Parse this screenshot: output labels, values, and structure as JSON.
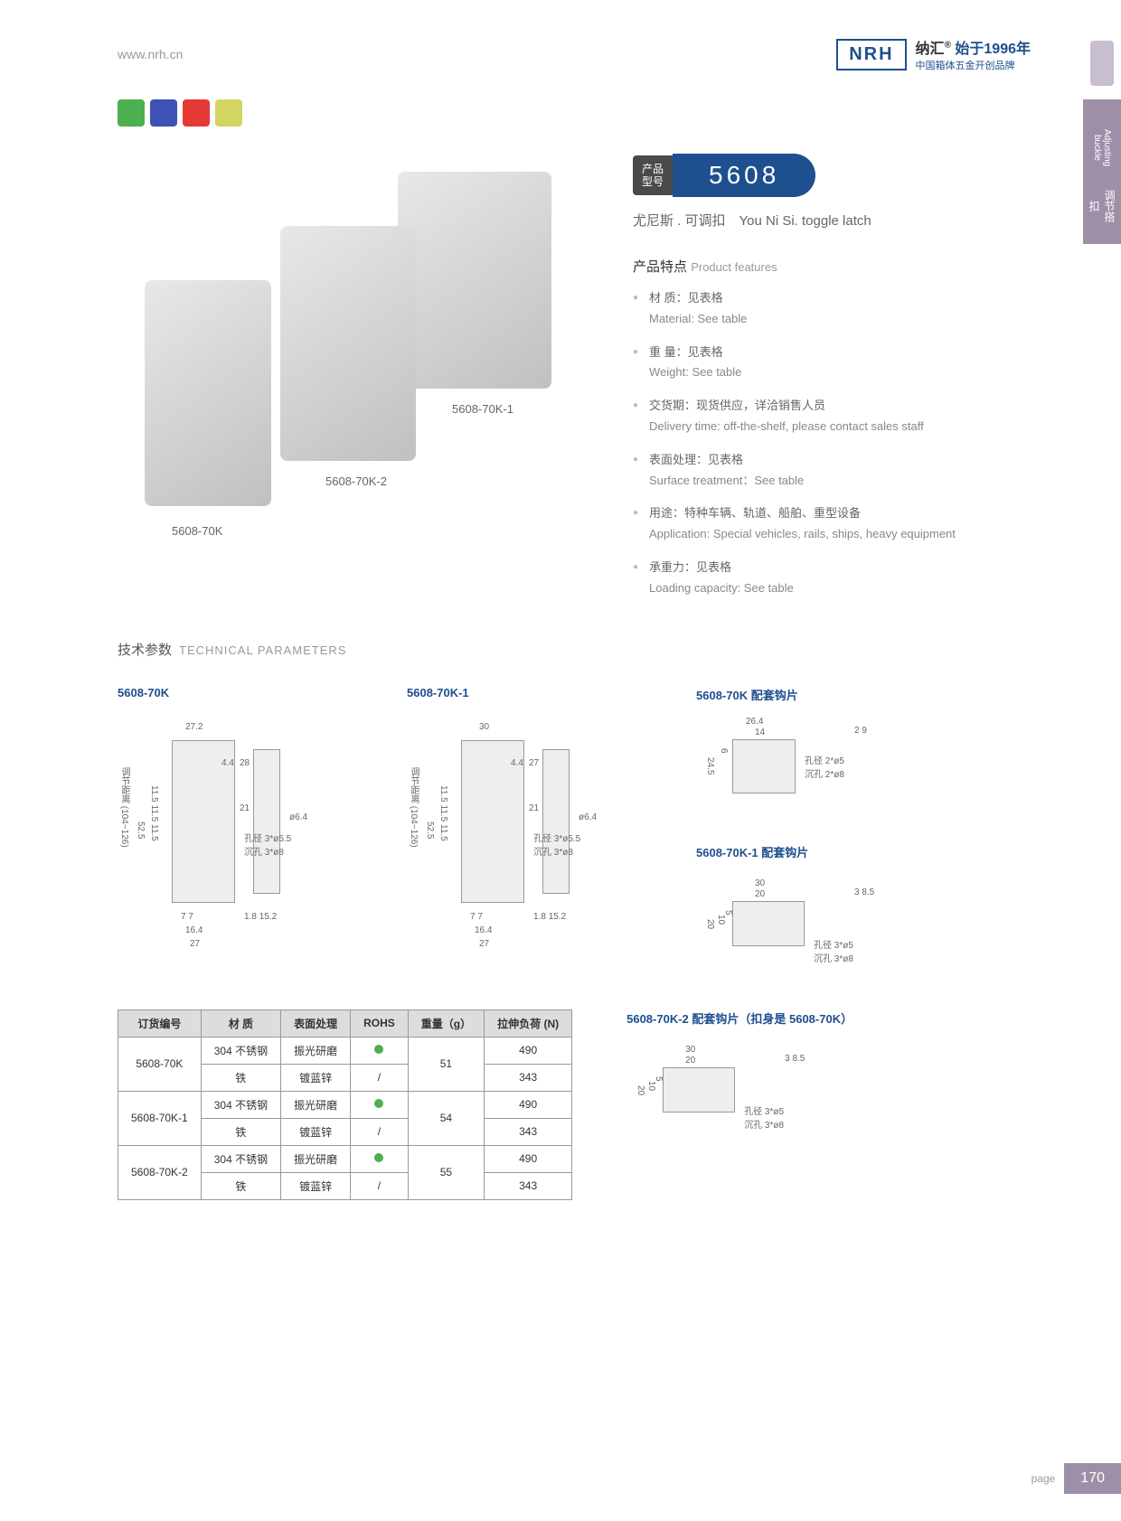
{
  "header": {
    "url": "www.nrh.cn",
    "logo": "NRH",
    "brand_cn": "纳汇",
    "since": "始于1996年",
    "tagline": "中国箱体五金开创品牌"
  },
  "side": {
    "cn": "调节搭扣",
    "en": "Adjusting buckle"
  },
  "badges": {
    "colors": [
      "#4caf50",
      "#3f51b5",
      "#e53935",
      "#d4d462"
    ]
  },
  "products": [
    {
      "label": "5608-70K"
    },
    {
      "label": "5608-70K-2"
    },
    {
      "label": "5608-70K-1"
    }
  ],
  "model": {
    "left": "产品\n型号",
    "number": "5608",
    "subtitle_cn": "尤尼斯 . 可调扣",
    "subtitle_en": "You Ni Si. toggle latch"
  },
  "features": {
    "title_cn": "产品特点",
    "title_en": "Product features",
    "items": [
      {
        "cn": "材 质：见表格",
        "en": "Material: See table"
      },
      {
        "cn": "重 量：见表格",
        "en": "Weight: See table"
      },
      {
        "cn": "交货期：现货供应，详洽销售人员",
        "en": "Delivery time: off-the-shelf, please contact sales staff"
      },
      {
        "cn": "表面处理：见表格",
        "en": "Surface treatment：See table"
      },
      {
        "cn": "用途：特种车辆、轨道、船舶、重型设备",
        "en": "Application: Special vehicles, rails, ships, heavy equipment"
      },
      {
        "cn": "承重力：见表格",
        "en": "Loading capacity: See table"
      }
    ]
  },
  "tech": {
    "title_cn": "技术参数",
    "title_en": "TECHNICAL PARAMETERS"
  },
  "diagrams": {
    "d1": {
      "title": "5608-70K",
      "dims": {
        "w1": "27.2",
        "w2": "4.4",
        "h1": "28",
        "h2": "21",
        "h3": "52.5",
        "h4": "11.5 11.5 11.5",
        "range": "调节距离 (104~126)",
        "hole": "孔径 3*ø5.5",
        "sink": "沉孔 3*ø8",
        "b1": "7",
        "b2": "7",
        "b3": "16.4",
        "b4": "27",
        "side_w": "15.2",
        "side_h": "1.8",
        "side_d": "ø6.4"
      }
    },
    "d2": {
      "title": "5608-70K-1",
      "dims": {
        "w1": "30",
        "w2": "4.4",
        "h1": "27",
        "h2": "21",
        "h3": "52.5",
        "h4": "11.5 11.5 11.5",
        "range": "调节距离 (104~126)",
        "hole": "孔径 3*ø5.5",
        "sink": "沉孔 3*ø8",
        "b1": "7",
        "b2": "7",
        "b3": "16.4",
        "b4": "27",
        "side_w": "15.2",
        "side_h": "1.8",
        "side_d": "ø6.4"
      }
    },
    "d3": {
      "title": "5608-70K 配套钩片",
      "dims": {
        "w1": "26.4",
        "w2": "14",
        "h1": "24.5",
        "h2": "6",
        "hole": "孔径 2*ø5",
        "sink": "沉孔 2*ø8",
        "hw": "2",
        "hd": "9"
      }
    },
    "d4": {
      "title": "5608-70K-1 配套钩片",
      "dims": {
        "w1": "30",
        "w2": "20",
        "h1": "20",
        "h2": "10",
        "h3": "5",
        "hole": "孔径 3*ø5",
        "sink": "沉孔 3*ø8",
        "hw": "3",
        "hd": "8.5"
      }
    },
    "d5": {
      "title": "5608-70K-2 配套钩片（扣身是 5608-70K）",
      "dims": {
        "w1": "30",
        "w2": "20",
        "h1": "20",
        "h2": "10",
        "h3": "5",
        "hole": "孔径 3*ø5",
        "sink": "沉孔 3*ø8",
        "hw": "3",
        "hd": "8.5"
      }
    }
  },
  "table": {
    "headers": [
      "订货编号",
      "材 质",
      "表面处理",
      "ROHS",
      "重量（g）",
      "拉伸负荷 (N)"
    ],
    "rows": [
      {
        "id": "5608-70K",
        "mat": "304 不锈钢",
        "surf": "振光研磨",
        "rohs": "dot",
        "weight": "51",
        "load": "490"
      },
      {
        "id": "",
        "mat": "铁",
        "surf": "镀蓝锌",
        "rohs": "/",
        "weight": "",
        "load": "343"
      },
      {
        "id": "5608-70K-1",
        "mat": "304 不锈钢",
        "surf": "振光研磨",
        "rohs": "dot",
        "weight": "54",
        "load": "490"
      },
      {
        "id": "",
        "mat": "铁",
        "surf": "镀蓝锌",
        "rohs": "/",
        "weight": "",
        "load": "343"
      },
      {
        "id": "5608-70K-2",
        "mat": "304 不锈钢",
        "surf": "振光研磨",
        "rohs": "dot",
        "weight": "55",
        "load": "490"
      },
      {
        "id": "",
        "mat": "铁",
        "surf": "镀蓝锌",
        "rohs": "/",
        "weight": "",
        "load": "343"
      }
    ]
  },
  "footer": {
    "label": "page",
    "num": "170"
  }
}
